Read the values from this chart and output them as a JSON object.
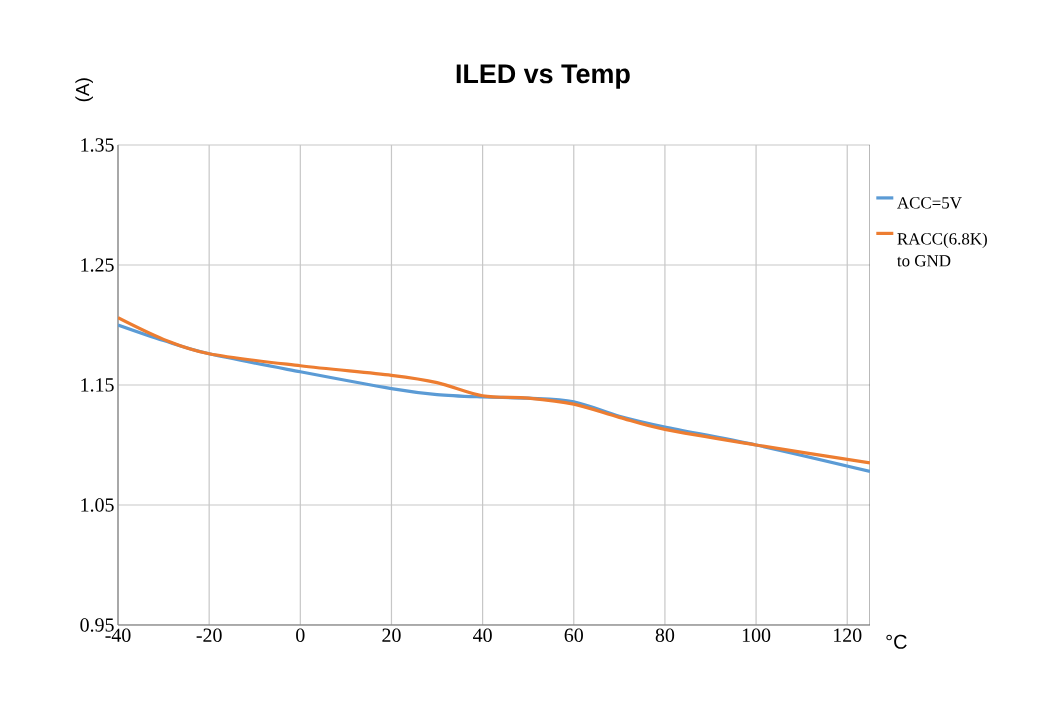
{
  "chart_data": {
    "type": "line",
    "title": "ILED vs Temp",
    "ylabel": "(A)",
    "xlabel": "°C",
    "x": [
      -40,
      -30,
      -20,
      0,
      20,
      30,
      40,
      50,
      60,
      70,
      80,
      100,
      125
    ],
    "series": [
      {
        "name": "ACC=5V",
        "color": "#5b9bd5",
        "values": [
          1.2,
          1.187,
          1.176,
          1.161,
          1.147,
          1.142,
          1.14,
          1.139,
          1.136,
          1.124,
          1.115,
          1.1,
          1.078
        ]
      },
      {
        "name": "RACC(6.8K) to GND",
        "color": "#ed7d31",
        "values": [
          1.206,
          1.188,
          1.176,
          1.166,
          1.158,
          1.152,
          1.141,
          1.139,
          1.134,
          1.123,
          1.113,
          1.1,
          1.085
        ]
      }
    ],
    "xlim": [
      -40,
      125
    ],
    "xticks": [
      -40,
      -20,
      0,
      20,
      40,
      60,
      80,
      100,
      120
    ],
    "ylim": [
      0.95,
      1.35
    ],
    "yticks": [
      0.95,
      1.05,
      1.15,
      1.25,
      1.35
    ],
    "grid": true,
    "legend": "right",
    "marker": "none",
    "line_style": "solid"
  }
}
